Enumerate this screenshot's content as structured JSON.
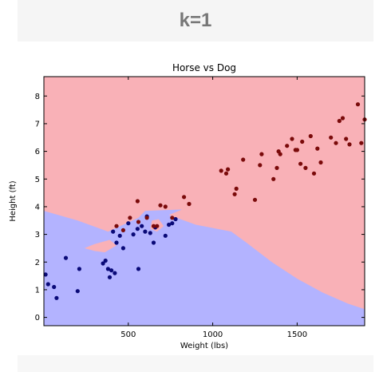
{
  "slide": {
    "title": "k=1"
  },
  "chart_data": {
    "type": "scatter",
    "title": "Horse vs Dog",
    "xlabel": "Weight (lbs)",
    "ylabel": "Height (ft)",
    "xlim": [
      0,
      1900
    ],
    "ylim": [
      -0.3,
      8.7
    ],
    "xticks": [
      500,
      1000,
      1500
    ],
    "yticks": [
      0,
      1,
      2,
      3,
      4,
      5,
      6,
      7,
      8
    ],
    "grid": false,
    "legend": "none",
    "background_colors": {
      "region_0": "#b3b3ff",
      "region_1": "#f9b1b7"
    },
    "decision_regions": [
      {
        "class": 0,
        "polygon": [
          [
            0,
            3.85
          ],
          [
            200,
            3.5
          ],
          [
            380,
            3.1
          ],
          [
            560,
            3.6
          ],
          [
            600,
            3.85
          ],
          [
            820,
            3.9
          ],
          [
            740,
            3.7
          ],
          [
            900,
            3.35
          ],
          [
            1110,
            3.1
          ],
          [
            1200,
            2.7
          ],
          [
            1350,
            2.0
          ],
          [
            1500,
            1.4
          ],
          [
            1650,
            0.9
          ],
          [
            1800,
            0.5
          ],
          [
            1900,
            0.3
          ],
          [
            1900,
            -0.3
          ],
          [
            0,
            -0.3
          ]
        ]
      },
      {
        "class": 1,
        "polygon": [
          [
            240,
            2.5
          ],
          [
            300,
            2.65
          ],
          [
            390,
            2.8
          ],
          [
            430,
            2.6
          ],
          [
            360,
            2.35
          ],
          [
            300,
            2.4
          ]
        ]
      },
      {
        "class": 1,
        "polygon": [
          [
            640,
            3.5
          ],
          [
            680,
            3.55
          ],
          [
            710,
            3.3
          ],
          [
            670,
            3.1
          ],
          [
            630,
            3.2
          ]
        ]
      }
    ],
    "series": [
      {
        "color": "#0a0a78",
        "points": [
          [
            10,
            1.55
          ],
          [
            25,
            1.2
          ],
          [
            60,
            1.1
          ],
          [
            75,
            0.7
          ],
          [
            130,
            2.15
          ],
          [
            200,
            0.95
          ],
          [
            210,
            1.75
          ],
          [
            350,
            1.95
          ],
          [
            365,
            2.05
          ],
          [
            380,
            1.75
          ],
          [
            390,
            1.45
          ],
          [
            400,
            1.7
          ],
          [
            410,
            3.1
          ],
          [
            420,
            1.6
          ],
          [
            430,
            2.7
          ],
          [
            450,
            2.95
          ],
          [
            470,
            2.5
          ],
          [
            500,
            3.4
          ],
          [
            530,
            3.0
          ],
          [
            555,
            3.2
          ],
          [
            560,
            1.75
          ],
          [
            580,
            3.3
          ],
          [
            600,
            3.1
          ],
          [
            610,
            3.65
          ],
          [
            630,
            3.05
          ],
          [
            650,
            2.7
          ],
          [
            660,
            3.25
          ],
          [
            720,
            2.95
          ],
          [
            740,
            3.35
          ],
          [
            760,
            3.4
          ],
          [
            780,
            3.55
          ]
        ]
      },
      {
        "color": "#7a0a0a",
        "points": [
          [
            430,
            3.3
          ],
          [
            470,
            3.15
          ],
          [
            510,
            3.6
          ],
          [
            555,
            4.2
          ],
          [
            560,
            3.45
          ],
          [
            610,
            3.6
          ],
          [
            650,
            3.3
          ],
          [
            670,
            3.3
          ],
          [
            690,
            4.05
          ],
          [
            720,
            4.0
          ],
          [
            760,
            3.6
          ],
          [
            830,
            4.35
          ],
          [
            860,
            4.1
          ],
          [
            1050,
            5.3
          ],
          [
            1080,
            5.2
          ],
          [
            1090,
            5.35
          ],
          [
            1130,
            4.45
          ],
          [
            1140,
            4.65
          ],
          [
            1180,
            5.7
          ],
          [
            1250,
            4.25
          ],
          [
            1280,
            5.5
          ],
          [
            1290,
            5.9
          ],
          [
            1360,
            5.0
          ],
          [
            1380,
            5.4
          ],
          [
            1390,
            6.0
          ],
          [
            1400,
            5.9
          ],
          [
            1440,
            6.2
          ],
          [
            1470,
            6.45
          ],
          [
            1490,
            6.05
          ],
          [
            1500,
            6.05
          ],
          [
            1520,
            5.55
          ],
          [
            1530,
            6.35
          ],
          [
            1550,
            5.4
          ],
          [
            1580,
            6.55
          ],
          [
            1600,
            5.2
          ],
          [
            1620,
            6.1
          ],
          [
            1640,
            5.6
          ],
          [
            1700,
            6.5
          ],
          [
            1730,
            6.3
          ],
          [
            1750,
            7.1
          ],
          [
            1770,
            7.2
          ],
          [
            1790,
            6.45
          ],
          [
            1810,
            6.25
          ],
          [
            1860,
            7.7
          ],
          [
            1880,
            6.3
          ],
          [
            1900,
            7.15
          ]
        ]
      }
    ]
  }
}
